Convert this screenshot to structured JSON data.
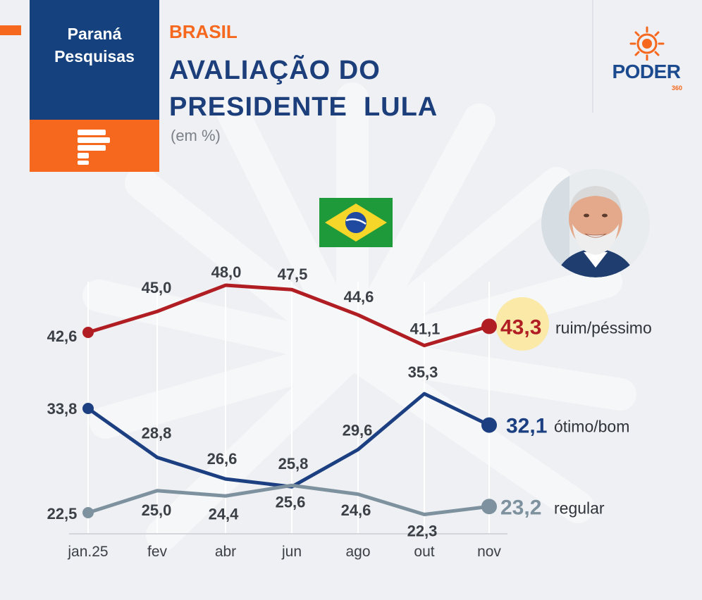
{
  "brand": {
    "publisher_line1": "Paraná",
    "publisher_line2": "Pesquisas",
    "outlet": "PODER",
    "outlet_sub": "360",
    "accent_orange": "#f5681e",
    "brand_navy": "#15417f"
  },
  "header": {
    "country": "BRASIL",
    "title_line1": "AVALIAÇÃO DO",
    "title_line2": "PRESIDENTE  LULA",
    "unit": "(em %)"
  },
  "chart_data": {
    "type": "line",
    "title": "AVALIAÇÃO DO PRESIDENTE LULA",
    "unit": "(em %)",
    "categories": [
      "jan.25",
      "fev",
      "abr",
      "jun",
      "ago",
      "out",
      "nov"
    ],
    "series": [
      {
        "name": "ruim/péssimo",
        "color": "#b01e23",
        "values": [
          42.6,
          45.0,
          48.0,
          47.5,
          44.6,
          41.1,
          43.3
        ],
        "labels": [
          "42,6",
          "45,0",
          "48,0",
          "47,5",
          "44,6",
          "41,1",
          "43,3"
        ]
      },
      {
        "name": "ótimo/bom",
        "color": "#1b3f80",
        "values": [
          33.8,
          28.8,
          26.6,
          25.8,
          29.6,
          35.3,
          32.1
        ],
        "labels": [
          "33,8",
          "28,8",
          "26,6",
          "25,8",
          "29,6",
          "35,3",
          "32,1"
        ]
      },
      {
        "name": "regular",
        "color": "#7d929e",
        "values": [
          22.5,
          25.0,
          24.4,
          25.6,
          24.6,
          22.3,
          23.2
        ],
        "labels": [
          "22,5",
          "25,0",
          "24,4",
          "25,6",
          "24,6",
          "22,3",
          "23,2"
        ]
      }
    ],
    "highlight_color": "#fbe9a8",
    "grid": "vertical",
    "legend": "right-end labels"
  }
}
